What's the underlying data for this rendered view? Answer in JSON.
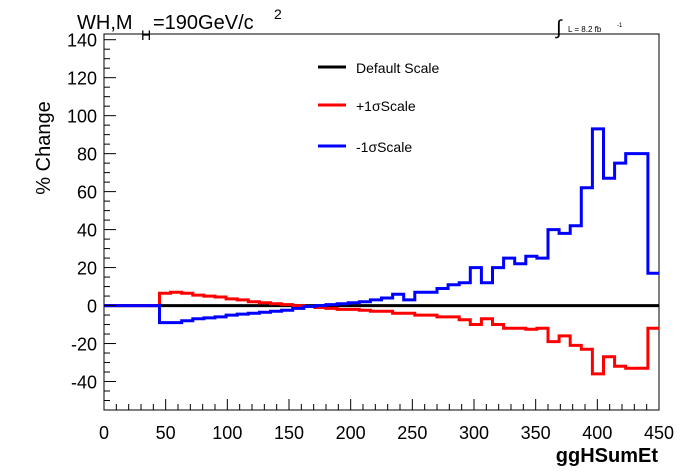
{
  "chart_data": {
    "type": "line",
    "title": "WH,M",
    "title_sub": "H",
    "title_rest": "=190GeV/c",
    "title_sup": "2",
    "lumi_label": "L = 8.2 fb",
    "lumi_sup": "-1",
    "xlabel": "ggHSumEt",
    "ylabel": "% Change",
    "xlim": [
      0,
      450
    ],
    "ylim": [
      -55,
      143
    ],
    "x_ticks": [
      "0",
      "50",
      "100",
      "150",
      "200",
      "250",
      "300",
      "350",
      "400",
      "450"
    ],
    "y_ticks": [
      "-40",
      "-20",
      "0",
      "20",
      "40",
      "60",
      "80",
      "100",
      "120",
      "140"
    ],
    "bin_edges": [
      0,
      45,
      54,
      63,
      72,
      81,
      90,
      99,
      108,
      117,
      126,
      135,
      144,
      153,
      162,
      171,
      180,
      189,
      198,
      207,
      216,
      225,
      234,
      243,
      252,
      261,
      270,
      279,
      288,
      297,
      306,
      315,
      324,
      333,
      342,
      351,
      360,
      369,
      378,
      387,
      396,
      405,
      414,
      423,
      432,
      441,
      450
    ],
    "series": [
      {
        "name": "Default Scale",
        "color": "#000000",
        "values": [
          0,
          0,
          0,
          0,
          0,
          0,
          0,
          0,
          0,
          0,
          0,
          0,
          0,
          0,
          0,
          0,
          0,
          0,
          0,
          0,
          0,
          0,
          0,
          0,
          0,
          0,
          0,
          0,
          0,
          0,
          0,
          0,
          0,
          0,
          0,
          0,
          0,
          0,
          0,
          0,
          0,
          0,
          0,
          0,
          0,
          0
        ]
      },
      {
        "name": "+1σScale",
        "color": "#ff0000",
        "values": [
          0,
          6.5,
          7,
          6.5,
          5.5,
          5,
          4.5,
          3.5,
          3,
          2,
          1.5,
          1,
          0.5,
          0,
          -0.5,
          -1,
          -1.5,
          -2,
          -2,
          -2.5,
          -3,
          -3,
          -4,
          -4,
          -5,
          -5,
          -6,
          -6,
          -7.5,
          -10,
          -7,
          -10,
          -12,
          -12,
          -12.5,
          -12,
          -19,
          -16,
          -21,
          -23,
          -36,
          -27,
          -32,
          -33,
          -33,
          -12
        ]
      },
      {
        "name": "-1σScale",
        "color": "#0000ff",
        "values": [
          0,
          -9,
          -9,
          -8,
          -7,
          -6.5,
          -6,
          -5,
          -4.5,
          -4,
          -3.5,
          -3,
          -2.5,
          -1.5,
          -0.5,
          0,
          0.5,
          1,
          1.5,
          2,
          3,
          4,
          6,
          3,
          7,
          7,
          9,
          11,
          12,
          20,
          12,
          20,
          25,
          22,
          26,
          25,
          40,
          38,
          42,
          62,
          93,
          67,
          75,
          80,
          80,
          17
        ]
      }
    ],
    "legend_placement": "top-center",
    "grid": false
  }
}
